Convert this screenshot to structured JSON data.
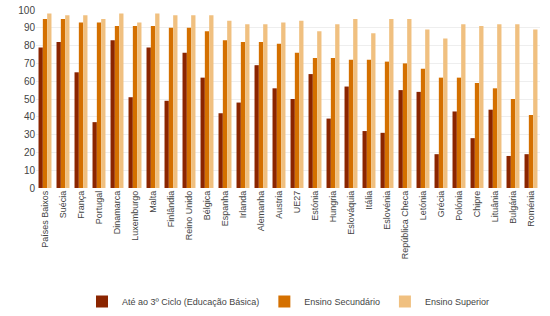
{
  "chart_data": {
    "type": "bar",
    "categories": [
      "Países Baixos",
      "Suécia",
      "França",
      "Portugal",
      "Dinamarca",
      "Luxemburgo",
      "Malta",
      "Finlândia",
      "Reino Unido",
      "Bélgica",
      "Espanha",
      "Irlanda",
      "Alemanha",
      "Austria",
      "UE27",
      "Estónia",
      "Hungria",
      "Eslováquia",
      "Itália",
      "Eslovénia",
      "República Checa",
      "Letónia",
      "Grécia",
      "Polónia",
      "Chipre",
      "Lituânia",
      "Bulgária",
      "Roménia"
    ],
    "series": [
      {
        "name": "Até ao 3º Ciclo (Educação Básica)",
        "color": "#8B2500",
        "values": [
          79,
          82,
          65,
          37,
          83,
          51,
          79,
          49,
          76,
          62,
          42,
          48,
          69,
          56,
          50,
          64,
          39,
          57,
          32,
          31,
          55,
          54,
          19,
          43,
          28,
          44,
          18,
          19
        ]
      },
      {
        "name": "Ensino Secundário",
        "color": "#D47000",
        "values": [
          95,
          95,
          93,
          93,
          91,
          91,
          91,
          90,
          90,
          88,
          83,
          82,
          82,
          81,
          76,
          73,
          73,
          72,
          72,
          71,
          70,
          67,
          62,
          62,
          59,
          56,
          50,
          41
        ]
      },
      {
        "name": "Ensino Superior",
        "color": "#F0C080",
        "values": [
          98,
          97,
          97,
          95,
          98,
          93,
          98,
          97,
          97,
          97,
          94,
          92,
          92,
          93,
          94,
          88,
          92,
          95,
          87,
          95,
          95,
          89,
          84,
          92,
          91,
          92,
          92,
          89
        ]
      }
    ],
    "ylim": [
      0,
      100
    ],
    "yticks": [
      0,
      10,
      20,
      30,
      40,
      50,
      60,
      70,
      80,
      90,
      100
    ],
    "grid": true,
    "legend": "bottom"
  }
}
